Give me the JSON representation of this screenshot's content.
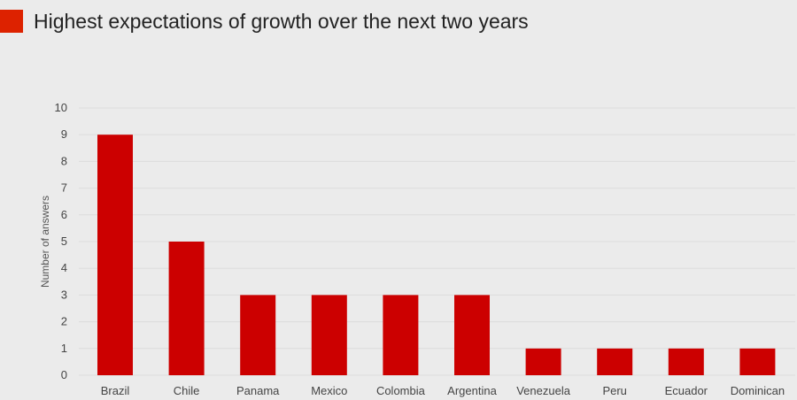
{
  "colors": {
    "background": "#ebebeb",
    "bar": "#cc0000",
    "legend_swatch": "#dd2200",
    "gridline": "#dcdcdc"
  },
  "header": {
    "title": "Highest expectations of growth over the next two years"
  },
  "chart_data": {
    "type": "bar",
    "title": "Highest expectations of growth over the next two years",
    "xlabel": "",
    "ylabel": "Number of answers",
    "ylim": [
      0,
      10
    ],
    "yticks": [
      0,
      1,
      2,
      3,
      4,
      5,
      6,
      7,
      8,
      9,
      10
    ],
    "grid": true,
    "categories": [
      "Brazil",
      "Chile",
      "Panama",
      "Mexico",
      "Colombia",
      "Argentina",
      "Venezuela",
      "Peru",
      "Ecuador",
      "Dominican"
    ],
    "values": [
      9,
      5,
      3,
      3,
      3,
      3,
      1,
      1,
      1,
      1
    ]
  }
}
